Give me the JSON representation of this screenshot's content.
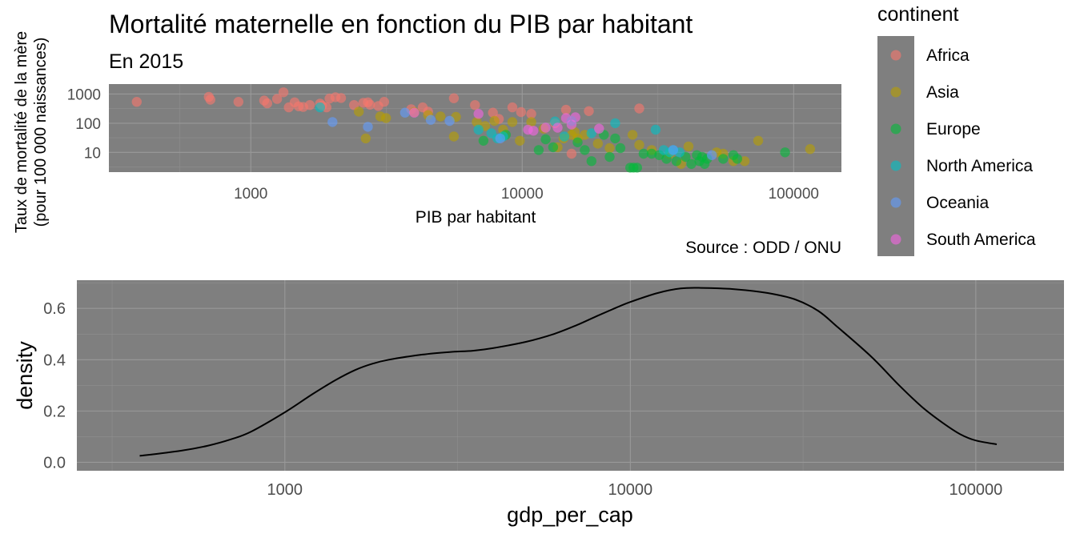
{
  "chart_data": [
    {
      "type": "scatter",
      "title": "Mortalité maternelle en fonction du PIB par habitant",
      "subtitle": "En 2015",
      "xlabel": "PIB par habitant",
      "ylabel": [
        "Taux de mortalité de la mère",
        "(pour 100 000 naissances)"
      ],
      "caption": "Source : ODD / ONU",
      "x_scale": "log10",
      "y_scale": "log10",
      "xlim": [
        300,
        150000
      ],
      "ylim": [
        2.1,
        2200
      ],
      "x_ticks": [
        1000,
        10000,
        100000
      ],
      "x_tick_labels": [
        "1000",
        "10000",
        "100000"
      ],
      "y_ticks": [
        10,
        100,
        1000
      ],
      "y_tick_labels": [
        "10",
        "100",
        "1000"
      ],
      "grid": true,
      "legend": {
        "title": "continent",
        "placement": "right",
        "entries": [
          {
            "name": "Africa",
            "color": "#F8766D"
          },
          {
            "name": "Asia",
            "color": "#B79F00"
          },
          {
            "name": "Europe",
            "color": "#00BA38"
          },
          {
            "name": "North America",
            "color": "#00BFC4"
          },
          {
            "name": "Oceania",
            "color": "#619CFF"
          },
          {
            "name": "South America",
            "color": "#F564E3"
          }
        ]
      },
      "series": [
        {
          "name": "Africa",
          "color": "#F8766D",
          "points": [
            [
              380,
              540
            ],
            [
              700,
              800
            ],
            [
              710,
              640
            ],
            [
              900,
              540
            ],
            [
              1120,
              600
            ],
            [
              1150,
              480
            ],
            [
              1250,
              680
            ],
            [
              1320,
              1150
            ],
            [
              1380,
              350
            ],
            [
              1450,
              520
            ],
            [
              1500,
              380
            ],
            [
              1560,
              360
            ],
            [
              1650,
              420
            ],
            [
              1800,
              470
            ],
            [
              1830,
              400
            ],
            [
              1900,
              350
            ],
            [
              1950,
              700
            ],
            [
              2050,
              780
            ],
            [
              2150,
              730
            ],
            [
              2400,
              420
            ],
            [
              2600,
              500
            ],
            [
              2700,
              520
            ],
            [
              2750,
              430
            ],
            [
              2950,
              390
            ],
            [
              3100,
              540
            ],
            [
              3900,
              300
            ],
            [
              4300,
              350
            ],
            [
              4500,
              250
            ],
            [
              5600,
              720
            ],
            [
              6700,
              420
            ],
            [
              7800,
              230
            ],
            [
              8200,
              140
            ],
            [
              9200,
              350
            ],
            [
              9900,
              240
            ],
            [
              10800,
              210
            ],
            [
              13200,
              100
            ],
            [
              14500,
              290
            ],
            [
              15200,
              9
            ],
            [
              17600,
              260
            ],
            [
              27000,
              320
            ]
          ]
        },
        {
          "name": "Asia",
          "color": "#B79F00",
          "points": [
            [
              2500,
              250
            ],
            [
              2650,
              30
            ],
            [
              3000,
              170
            ],
            [
              3150,
              150
            ],
            [
              4000,
              240
            ],
            [
              4500,
              190
            ],
            [
              5000,
              170
            ],
            [
              5600,
              35
            ],
            [
              5700,
              165
            ],
            [
              6800,
              110
            ],
            [
              7300,
              80
            ],
            [
              7900,
              120
            ],
            [
              8500,
              60
            ],
            [
              9200,
              110
            ],
            [
              9800,
              25
            ],
            [
              10800,
              110
            ],
            [
              12000,
              65
            ],
            [
              13500,
              15
            ],
            [
              14200,
              30
            ],
            [
              15200,
              40
            ],
            [
              15600,
              50
            ],
            [
              16000,
              30
            ],
            [
              17000,
              40
            ],
            [
              19000,
              20
            ],
            [
              21000,
              14
            ],
            [
              25500,
              40
            ],
            [
              27000,
              18
            ],
            [
              30000,
              12
            ],
            [
              35000,
              9
            ],
            [
              38500,
              4
            ],
            [
              41000,
              16
            ],
            [
              52000,
              10
            ],
            [
              55000,
              9
            ],
            [
              60000,
              5
            ],
            [
              66000,
              5
            ],
            [
              74000,
              25
            ],
            [
              115000,
              13
            ]
          ]
        },
        {
          "name": "Europe",
          "color": "#00BA38",
          "points": [
            [
              7200,
              25
            ],
            [
              8700,
              40
            ],
            [
              11500,
              12
            ],
            [
              12200,
              28
            ],
            [
              13000,
              15
            ],
            [
              16000,
              22
            ],
            [
              17000,
              12
            ],
            [
              18000,
              5
            ],
            [
              20000,
              40
            ],
            [
              21000,
              7
            ],
            [
              22000,
              30
            ],
            [
              23000,
              14
            ],
            [
              25000,
              3
            ],
            [
              25700,
              3
            ],
            [
              26500,
              3
            ],
            [
              28000,
              9
            ],
            [
              30000,
              9
            ],
            [
              32000,
              8
            ],
            [
              34000,
              6
            ],
            [
              37000,
              5
            ],
            [
              40000,
              7
            ],
            [
              42000,
              4
            ],
            [
              44000,
              8
            ],
            [
              45000,
              5
            ],
            [
              46000,
              7
            ],
            [
              47000,
              4
            ],
            [
              48000,
              6
            ],
            [
              55000,
              6
            ],
            [
              60000,
              8
            ],
            [
              62000,
              6
            ],
            [
              93000,
              10
            ]
          ]
        },
        {
          "name": "North America",
          "color": "#00BFC4",
          "points": [
            [
              1800,
              350
            ],
            [
              6900,
              60
            ],
            [
              7700,
              45
            ],
            [
              8100,
              30
            ],
            [
              8500,
              35
            ],
            [
              13200,
              115
            ],
            [
              14300,
              35
            ],
            [
              15200,
              120
            ],
            [
              18000,
              45
            ],
            [
              22000,
              100
            ],
            [
              31000,
              60
            ],
            [
              33200,
              12
            ],
            [
              35000,
              10
            ],
            [
              36000,
              12
            ],
            [
              38000,
              10
            ]
          ]
        },
        {
          "name": "Oceania",
          "color": "#619CFF",
          "points": [
            [
              2000,
              110
            ],
            [
              2700,
              75
            ],
            [
              3700,
              230
            ],
            [
              4600,
              130
            ],
            [
              5400,
              120
            ],
            [
              8300,
              30
            ],
            [
              36000,
              12
            ],
            [
              50000,
              8
            ]
          ]
        },
        {
          "name": "South America",
          "color": "#F564E3",
          "points": [
            [
              4000,
              230
            ],
            [
              6900,
              210
            ],
            [
              10500,
              60
            ],
            [
              11000,
              55
            ],
            [
              12200,
              70
            ],
            [
              13500,
              70
            ],
            [
              14500,
              150
            ],
            [
              15200,
              90
            ],
            [
              15700,
              160
            ],
            [
              19200,
              65
            ]
          ]
        }
      ]
    },
    {
      "type": "line",
      "subtype": "density",
      "xlabel": "gdp_per_cap",
      "ylabel": "density",
      "x_scale": "log10",
      "xlim": [
        250,
        180000
      ],
      "ylim": [
        -0.033,
        0.71
      ],
      "x_ticks": [
        1000,
        10000,
        100000
      ],
      "x_tick_labels": [
        "1000",
        "10000",
        "100000"
      ],
      "y_ticks": [
        0.0,
        0.2,
        0.4,
        0.6
      ],
      "y_tick_labels": [
        "0.0",
        "0.2",
        "0.4",
        "0.6"
      ],
      "grid": true,
      "line_color": "#000000",
      "points": [
        [
          380,
          0.025
        ],
        [
          500,
          0.045
        ],
        [
          600,
          0.065
        ],
        [
          700,
          0.09
        ],
        [
          800,
          0.12
        ],
        [
          1000,
          0.195
        ],
        [
          1200,
          0.265
        ],
        [
          1400,
          0.32
        ],
        [
          1600,
          0.36
        ],
        [
          1800,
          0.385
        ],
        [
          2000,
          0.4
        ],
        [
          2500,
          0.42
        ],
        [
          3000,
          0.43
        ],
        [
          3500,
          0.435
        ],
        [
          4000,
          0.445
        ],
        [
          5000,
          0.47
        ],
        [
          6000,
          0.5
        ],
        [
          7000,
          0.535
        ],
        [
          8000,
          0.57
        ],
        [
          9000,
          0.6
        ],
        [
          10000,
          0.625
        ],
        [
          12000,
          0.66
        ],
        [
          14000,
          0.678
        ],
        [
          16000,
          0.68
        ],
        [
          20000,
          0.675
        ],
        [
          25000,
          0.66
        ],
        [
          30000,
          0.635
        ],
        [
          35000,
          0.59
        ],
        [
          40000,
          0.525
        ],
        [
          50000,
          0.41
        ],
        [
          60000,
          0.3
        ],
        [
          70000,
          0.215
        ],
        [
          80000,
          0.155
        ],
        [
          90000,
          0.11
        ],
        [
          100000,
          0.085
        ],
        [
          115000,
          0.07
        ]
      ]
    }
  ]
}
